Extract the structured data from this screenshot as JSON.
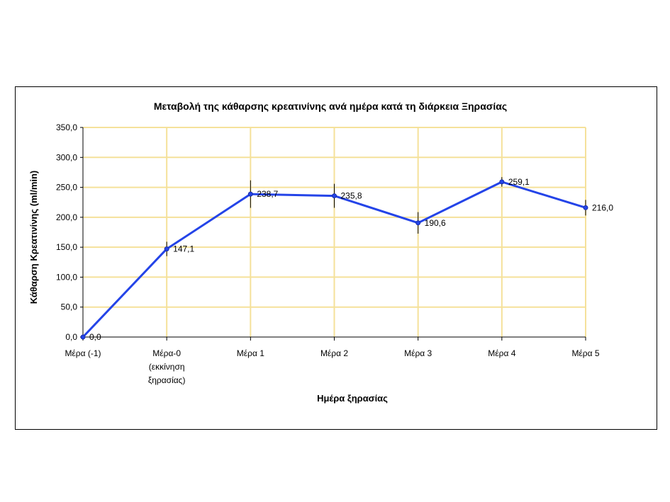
{
  "chart_data": {
    "type": "line",
    "title": "Μεταβολή της κάθαρσης κρεατινίνης ανά ημέρα κατά τη διάρκεια Ξηρασίας",
    "xlabel": "Ημέρα ξηρασίας",
    "ylabel": "Κάθαρση Κρεατινίνης (ml/min)",
    "categories": [
      [
        "Μέρα  (-1)"
      ],
      [
        "Μέρα-0",
        "(εκκίνηση",
        "ξηρασίας)"
      ],
      [
        "Μέρα  1"
      ],
      [
        "Μέρα  2"
      ],
      [
        "Μέρα  3"
      ],
      [
        "Μέρα  4"
      ],
      [
        "Μέρα  5"
      ]
    ],
    "values": [
      0.0,
      147.1,
      238.7,
      235.8,
      190.6,
      259.1,
      216.0
    ],
    "value_labels": [
      "0,0",
      "147,1",
      "238,7",
      "235,8",
      "190,6",
      "259,1",
      "216,0"
    ],
    "error": [
      0,
      12,
      23,
      20,
      18,
      8,
      13
    ],
    "yticks": [
      "0,0",
      "50,0",
      "100,0",
      "150,0",
      "200,0",
      "250,0",
      "300,0",
      "350,0"
    ],
    "ylim": [
      0,
      350
    ],
    "ytick_step": 50,
    "grid": true,
    "colors": {
      "line": "#2444e8",
      "grid": "#f5e19a",
      "error_bar": "#000000",
      "axis": "#000000"
    }
  }
}
